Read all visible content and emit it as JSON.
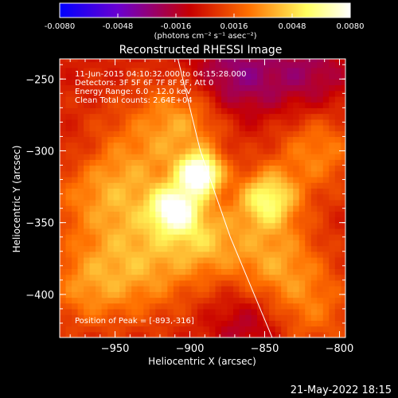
{
  "colorbar": {
    "ticks": [
      "-0.0080",
      "-0.0048",
      "-0.0016",
      "0.0016",
      "0.0048",
      "0.0080"
    ],
    "units": "(photons cm⁻² s⁻¹ asec⁻²)",
    "range": [
      -0.008,
      0.008
    ],
    "colors": [
      "#0000ff",
      "#7a00c8",
      "#d41616",
      "#ff8a00",
      "#ffff60",
      "#ffffff"
    ]
  },
  "chart_data": {
    "type": "heatmap",
    "title": "Reconstructed RHESSI Image",
    "xlabel": "Heliocentric X (arcsec)",
    "ylabel": "Heliocentric Y (arcsec)",
    "xlim": [
      -987,
      -796
    ],
    "ylim": [
      -430,
      -236
    ],
    "x_ticks": [
      -950,
      -900,
      -850,
      -800
    ],
    "y_ticks": [
      -250,
      -300,
      -350,
      -400
    ],
    "info_lines": [
      "11-Jun-2015 04:10:32.000 to 04:15:28.000",
      "Detectors: 3F 5F 6F 7F 8F 9F, Att 0",
      "Energy Range: 6.0 - 12.0 keV",
      "Clean    Total counts: 2.64E+04"
    ],
    "peak_label": "Position of Peak = [-893,-316]",
    "peak": [
      -893,
      -316
    ],
    "limb_curve": [
      [
        -908,
        -236
      ],
      [
        -893,
        -300
      ],
      [
        -873,
        -360
      ],
      [
        -845,
        -430
      ]
    ],
    "sources": [
      {
        "x": -893,
        "y": -316,
        "intensity": 1.0,
        "sigma": 10
      },
      {
        "x": -910,
        "y": -340,
        "intensity": 0.78,
        "sigma": 11
      },
      {
        "x": -848,
        "y": -333,
        "intensity": 0.68,
        "sigma": 14
      },
      {
        "x": -950,
        "y": -325,
        "intensity": 0.45,
        "sigma": 30
      },
      {
        "x": -905,
        "y": -280,
        "intensity": 0.42,
        "sigma": 22
      },
      {
        "x": -845,
        "y": -375,
        "intensity": 0.4,
        "sigma": 22
      },
      {
        "x": -930,
        "y": -380,
        "intensity": 0.38,
        "sigma": 26
      },
      {
        "x": -890,
        "y": -360,
        "intensity": 0.4,
        "sigma": 18
      },
      {
        "x": -815,
        "y": -300,
        "intensity": 0.35,
        "sigma": 20
      },
      {
        "x": -820,
        "y": -410,
        "intensity": 0.28,
        "sigma": 22
      },
      {
        "x": -970,
        "y": -395,
        "intensity": 0.3,
        "sigma": 20
      }
    ],
    "negative_regions": [
      {
        "x": -870,
        "y": -248,
        "intensity": 0.7,
        "sigma": 22
      },
      {
        "x": -820,
        "y": -245,
        "intensity": 0.5,
        "sigma": 20
      },
      {
        "x": -860,
        "y": -420,
        "intensity": 0.45,
        "sigma": 18
      },
      {
        "x": -975,
        "y": -300,
        "intensity": 0.25,
        "sigma": 14
      }
    ]
  },
  "timestamp": "21-May-2022 18:15"
}
